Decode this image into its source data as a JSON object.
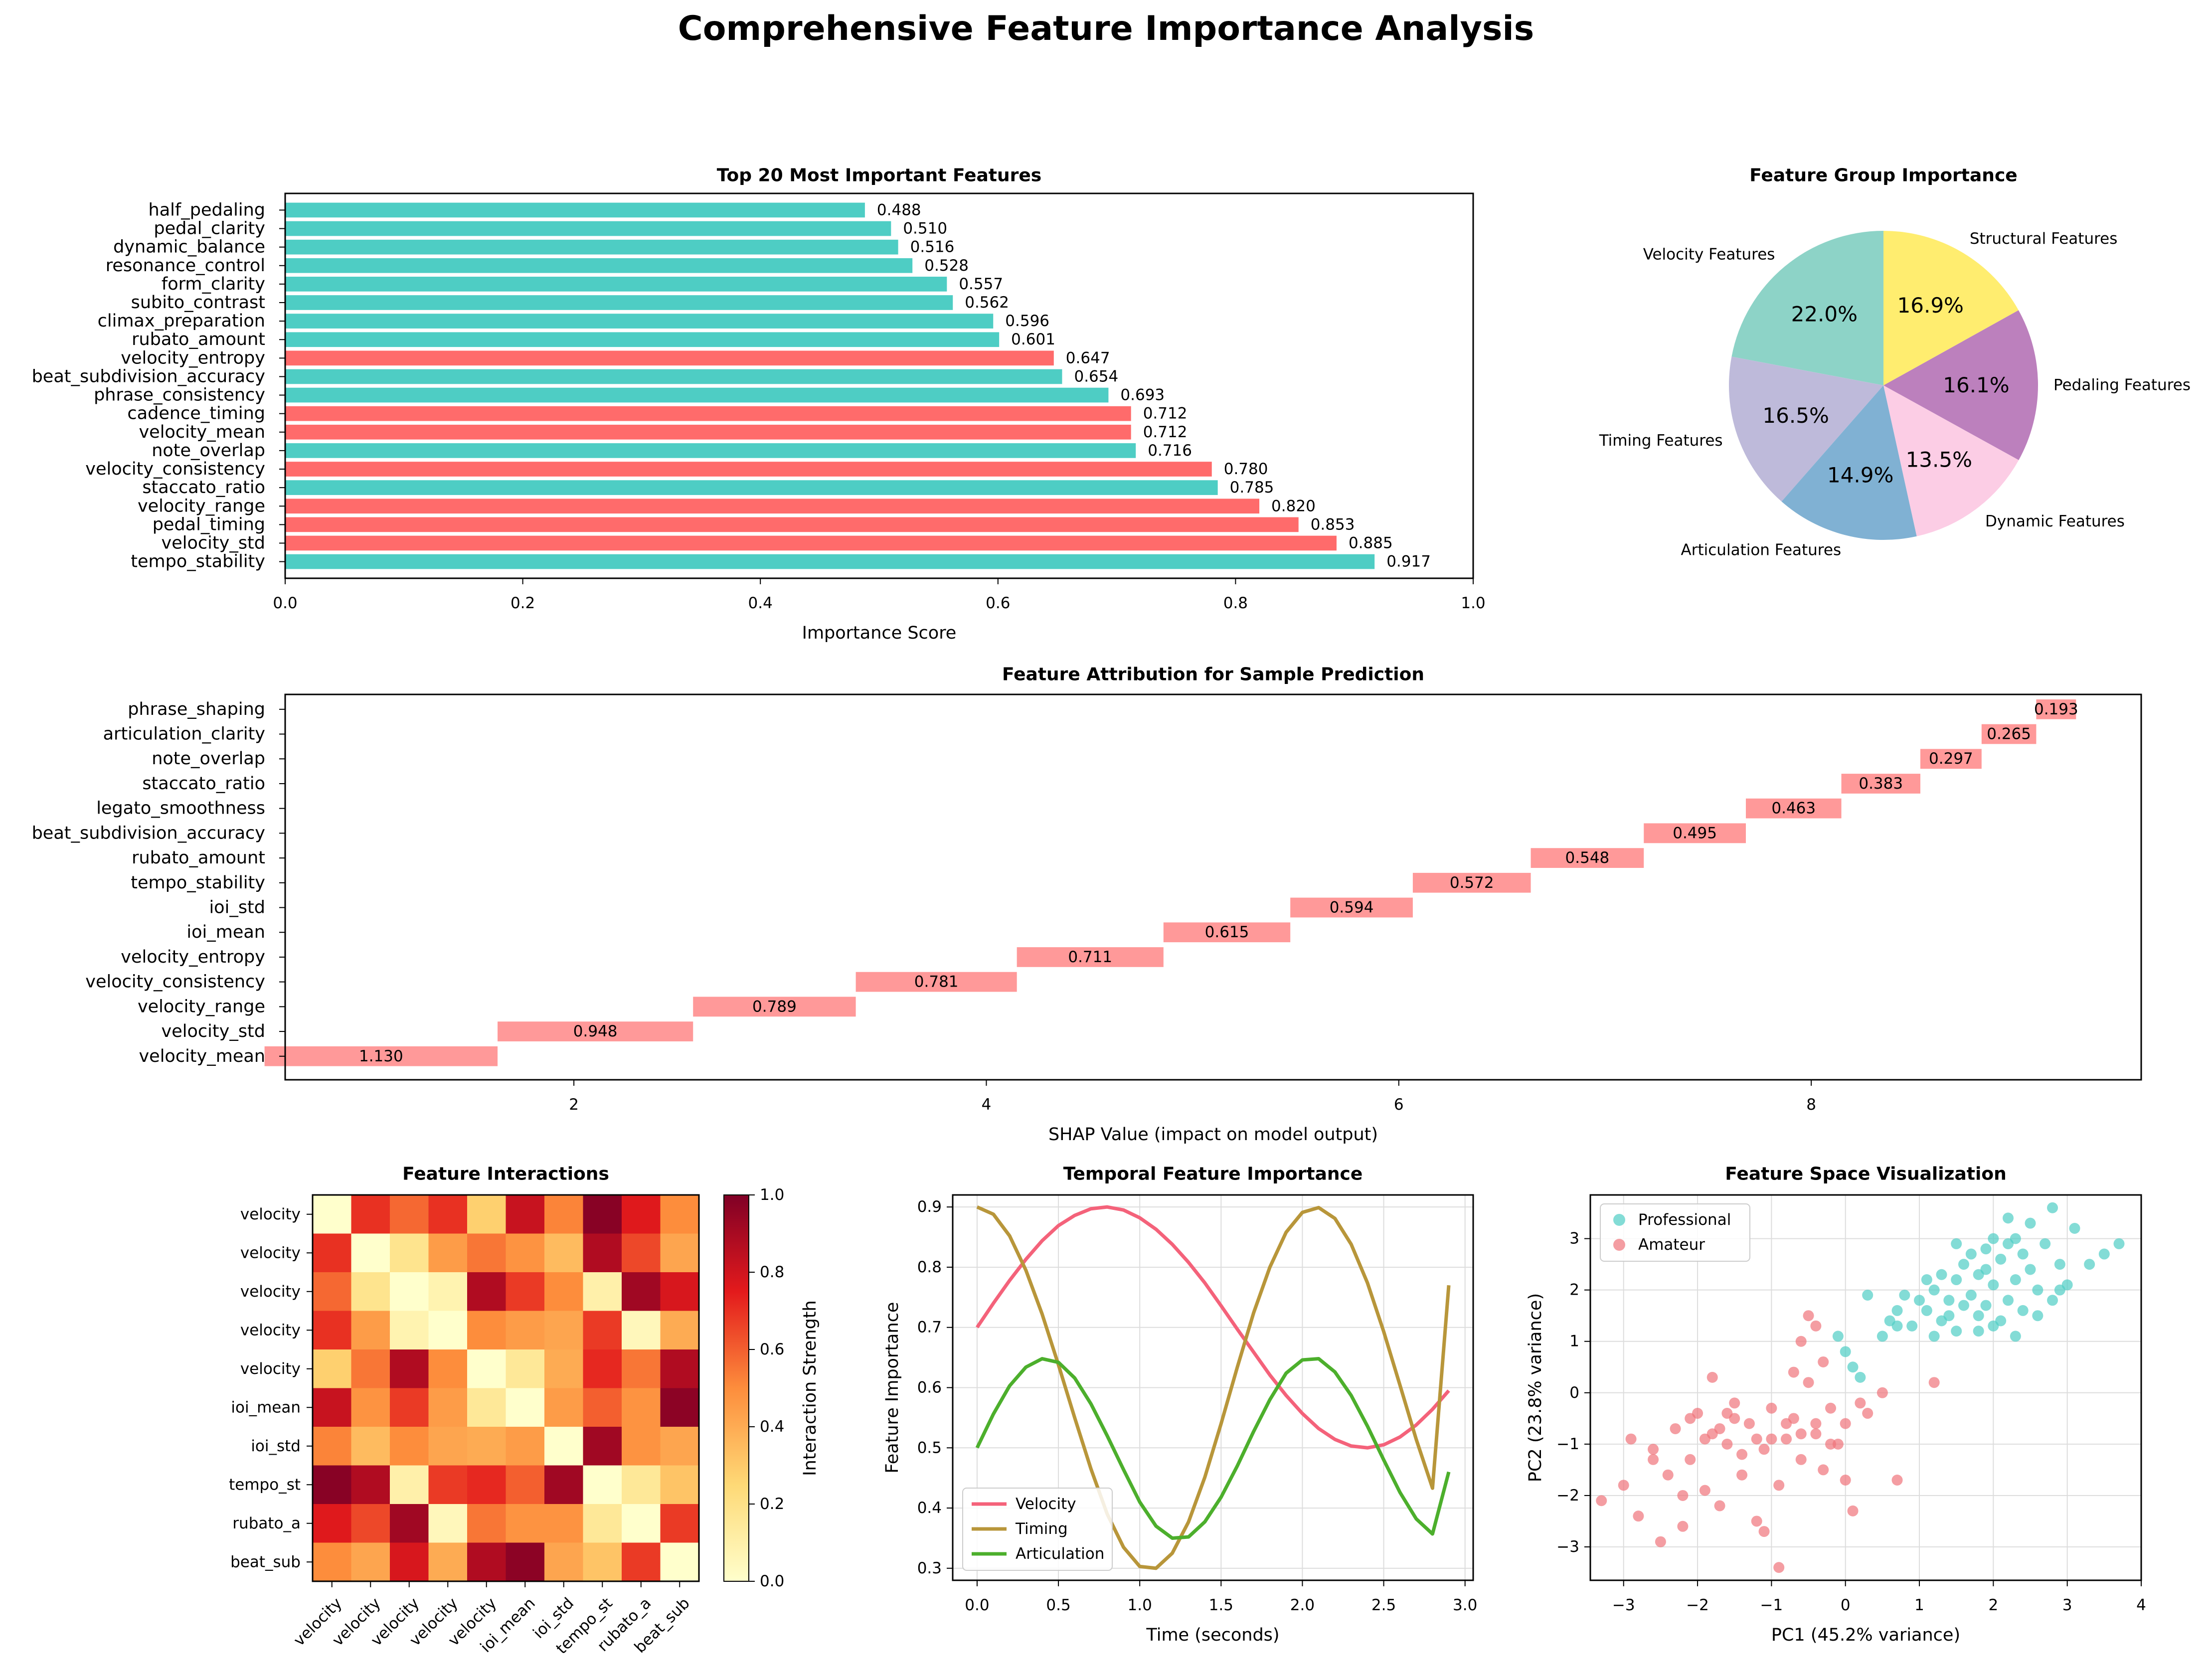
{
  "suptitle": "Comprehensive Feature Importance Analysis",
  "colors": {
    "high": "#ff6b6b",
    "low": "#4ecdc4",
    "shap": "#ff9999",
    "pie": [
      "#8dd3c7",
      "#bebada",
      "#80b1d3",
      "#fccde5",
      "#bc80bd",
      "#ffed6f"
    ],
    "line": [
      "#f4627a",
      "#b8963a",
      "#4caf2c"
    ],
    "professional": "#4ecdc4",
    "amateur": "#f0747a"
  },
  "chart_data": [
    {
      "id": "top20",
      "type": "bar",
      "orientation": "horizontal",
      "title": "Top 20 Most Important Features",
      "xlabel": "Importance Score",
      "xlim": [
        0,
        1.0
      ],
      "xticks": [
        "0.0",
        "0.2",
        "0.4",
        "0.6",
        "0.8",
        "1.0"
      ],
      "categories": [
        "tempo_stability",
        "velocity_std",
        "pedal_timing",
        "velocity_range",
        "staccato_ratio",
        "velocity_consistency",
        "note_overlap",
        "velocity_mean",
        "cadence_timing",
        "phrase_consistency",
        "beat_subdivision_accuracy",
        "velocity_entropy",
        "rubato_amount",
        "climax_preparation",
        "subito_contrast",
        "form_clarity",
        "resonance_control",
        "dynamic_balance",
        "pedal_clarity",
        "half_pedaling"
      ],
      "values": [
        0.917,
        0.885,
        0.853,
        0.82,
        0.785,
        0.78,
        0.716,
        0.712,
        0.712,
        0.693,
        0.654,
        0.647,
        0.601,
        0.596,
        0.562,
        0.557,
        0.528,
        0.516,
        0.51,
        0.488
      ],
      "labels": [
        "0.917",
        "0.885",
        "0.853",
        "0.820",
        "0.785",
        "0.780",
        "0.716",
        "0.712",
        "0.712",
        "0.693",
        "0.654",
        "0.647",
        "0.601",
        "0.596",
        "0.562",
        "0.557",
        "0.528",
        "0.516",
        "0.510",
        "0.488"
      ],
      "bar_color_group": [
        "low",
        "high",
        "high",
        "high",
        "low",
        "high",
        "low",
        "high",
        "high",
        "low",
        "low",
        "high",
        "low",
        "low",
        "low",
        "low",
        "low",
        "low",
        "low",
        "low"
      ]
    },
    {
      "id": "groups",
      "type": "pie",
      "title": "Feature Group Importance",
      "labels": [
        "Velocity Features",
        "Timing Features",
        "Articulation Features",
        "Dynamic Features",
        "Pedaling Features",
        "Structural Features"
      ],
      "values": [
        22.0,
        16.5,
        14.9,
        13.5,
        16.1,
        16.9
      ],
      "pct_labels": [
        "22.0%",
        "16.5%",
        "14.9%",
        "13.5%",
        "16.1%",
        "16.9%"
      ]
    },
    {
      "id": "shap",
      "type": "bar",
      "orientation": "horizontal-waterfall",
      "title": "Feature Attribution for Sample Prediction",
      "xlabel": "SHAP Value (impact on model output)",
      "xlim": [
        0.6,
        9.6
      ],
      "xticks": [
        2,
        4,
        6,
        8
      ],
      "xtick_labels": [
        "2",
        "4",
        "6",
        "8"
      ],
      "categories": [
        "velocity_mean",
        "velocity_std",
        "velocity_range",
        "velocity_consistency",
        "velocity_entropy",
        "ioi_mean",
        "ioi_std",
        "tempo_stability",
        "rubato_amount",
        "beat_subdivision_accuracy",
        "legato_smoothness",
        "staccato_ratio",
        "note_overlap",
        "articulation_clarity",
        "phrase_shaping"
      ],
      "values": [
        1.13,
        0.948,
        0.789,
        0.781,
        0.711,
        0.615,
        0.594,
        0.572,
        0.548,
        0.495,
        0.463,
        0.383,
        0.297,
        0.265,
        0.193
      ],
      "labels": [
        "1.130",
        "0.948",
        "0.789",
        "0.781",
        "0.711",
        "0.615",
        "0.594",
        "0.572",
        "0.548",
        "0.495",
        "0.463",
        "0.383",
        "0.297",
        "0.265",
        "0.193"
      ],
      "base": 0.5
    },
    {
      "id": "heatmap",
      "type": "heatmap",
      "title": "Feature Interactions",
      "row_labels": [
        "velocity",
        "velocity",
        "velocity",
        "velocity",
        "velocity",
        "ioi_mean",
        "ioi_std",
        "tempo_st",
        "rubato_a",
        "beat_sub"
      ],
      "col_labels": [
        "velocity",
        "velocity",
        "velocity",
        "velocity",
        "velocity",
        "ioi_mean",
        "ioi_std",
        "tempo_st",
        "rubato_a",
        "beat_sub"
      ],
      "colorbar_label": "Interaction Strength",
      "colorbar_ticks": [
        "0.0",
        "0.2",
        "0.4",
        "0.6",
        "0.8",
        "1.0"
      ],
      "range": [
        0,
        1
      ],
      "matrix": [
        [
          0.0,
          0.7,
          0.58,
          0.7,
          0.28,
          0.82,
          0.52,
          0.98,
          0.76,
          0.5
        ],
        [
          0.7,
          0.0,
          0.18,
          0.45,
          0.55,
          0.48,
          0.35,
          0.88,
          0.65,
          0.42
        ],
        [
          0.58,
          0.18,
          0.0,
          0.08,
          0.88,
          0.68,
          0.5,
          0.1,
          0.92,
          0.78
        ],
        [
          0.7,
          0.45,
          0.08,
          0.0,
          0.5,
          0.45,
          0.42,
          0.68,
          0.05,
          0.4
        ],
        [
          0.28,
          0.55,
          0.88,
          0.5,
          0.0,
          0.15,
          0.4,
          0.72,
          0.55,
          0.88
        ],
        [
          0.82,
          0.48,
          0.68,
          0.45,
          0.15,
          0.0,
          0.45,
          0.6,
          0.48,
          0.97
        ],
        [
          0.52,
          0.35,
          0.5,
          0.42,
          0.4,
          0.45,
          0.0,
          0.92,
          0.48,
          0.42
        ],
        [
          0.98,
          0.88,
          0.1,
          0.68,
          0.72,
          0.6,
          0.92,
          0.0,
          0.15,
          0.32
        ],
        [
          0.76,
          0.65,
          0.92,
          0.05,
          0.55,
          0.48,
          0.48,
          0.15,
          0.0,
          0.68
        ],
        [
          0.5,
          0.42,
          0.78,
          0.4,
          0.88,
          0.97,
          0.42,
          0.32,
          0.68,
          0.0
        ]
      ]
    },
    {
      "id": "temporal",
      "type": "line",
      "title": "Temporal Feature Importance",
      "xlabel": "Time (seconds)",
      "ylabel": "Feature Importance",
      "xlim": [
        -0.15,
        3.05
      ],
      "ylim": [
        0.28,
        0.92
      ],
      "xticks": [
        "0.0",
        "0.5",
        "1.0",
        "1.5",
        "2.0",
        "2.5",
        "3.0"
      ],
      "yticks": [
        "0.3",
        "0.4",
        "0.5",
        "0.6",
        "0.7",
        "0.8",
        "0.9"
      ],
      "x": [
        0.0,
        0.1,
        0.2,
        0.3,
        0.4,
        0.5,
        0.6,
        0.7,
        0.8,
        0.9,
        1.0,
        1.1,
        1.2,
        1.3,
        1.4,
        1.5,
        1.6,
        1.7,
        1.8,
        1.9,
        2.0,
        2.1,
        2.2,
        2.3,
        2.4,
        2.5,
        2.6,
        2.7,
        2.8,
        2.9
      ],
      "series": [
        {
          "name": "Velocity",
          "values": [
            0.7,
            0.74,
            0.778,
            0.813,
            0.844,
            0.869,
            0.886,
            0.897,
            0.9,
            0.895,
            0.882,
            0.863,
            0.838,
            0.808,
            0.774,
            0.736,
            0.697,
            0.659,
            0.621,
            0.587,
            0.557,
            0.532,
            0.514,
            0.503,
            0.5,
            0.505,
            0.518,
            0.538,
            0.564,
            0.595
          ]
        },
        {
          "name": "Timing",
          "values": [
            0.9,
            0.888,
            0.852,
            0.795,
            0.722,
            0.638,
            0.55,
            0.465,
            0.39,
            0.335,
            0.303,
            0.3,
            0.325,
            0.377,
            0.451,
            0.54,
            0.634,
            0.724,
            0.8,
            0.858,
            0.891,
            0.899,
            0.881,
            0.838,
            0.774,
            0.693,
            0.604,
            0.514,
            0.433,
            0.77
          ]
        },
        {
          "name": "Articulation",
          "values": [
            0.5,
            0.556,
            0.603,
            0.634,
            0.648,
            0.642,
            0.616,
            0.573,
            0.52,
            0.464,
            0.41,
            0.37,
            0.35,
            0.352,
            0.377,
            0.418,
            0.47,
            0.527,
            0.58,
            0.624,
            0.646,
            0.648,
            0.626,
            0.587,
            0.536,
            0.48,
            0.426,
            0.382,
            0.357,
            0.46
          ]
        }
      ]
    },
    {
      "id": "scatter",
      "type": "scatter",
      "title": "Feature Space Visualization",
      "xlabel": "PC1 (45.2% variance)",
      "ylabel": "PC2 (23.8% variance)",
      "xlim": [
        -3.45,
        4.0
      ],
      "ylim": [
        -3.65,
        3.85
      ],
      "xticks": [
        -3,
        -2,
        -1,
        0,
        1,
        2,
        3,
        4
      ],
      "xtick_labels": [
        "−3",
        "−2",
        "−1",
        "0",
        "1",
        "2",
        "3",
        "4"
      ],
      "yticks": [
        -3,
        -2,
        -1,
        0,
        1,
        2,
        3
      ],
      "ytick_labels": [
        "−3",
        "−2",
        "−1",
        "0",
        "1",
        "2",
        "3"
      ],
      "series": [
        {
          "name": "Professional",
          "points": [
            [
              1.1,
              1.6
            ],
            [
              1.2,
              2.0
            ],
            [
              1.3,
              1.4
            ],
            [
              1.4,
              1.8
            ],
            [
              1.5,
              2.2
            ],
            [
              1.5,
              1.2
            ],
            [
              1.6,
              2.5
            ],
            [
              1.7,
              1.9
            ],
            [
              1.8,
              1.5
            ],
            [
              1.9,
              2.8
            ],
            [
              2.0,
              2.1
            ],
            [
              2.0,
              1.3
            ],
            [
              2.1,
              2.6
            ],
            [
              2.2,
              1.8
            ],
            [
              2.3,
              3.0
            ],
            [
              2.3,
              2.2
            ],
            [
              2.4,
              1.6
            ],
            [
              2.5,
              2.4
            ],
            [
              2.6,
              2.0
            ],
            [
              2.7,
              2.9
            ],
            [
              2.8,
              1.8
            ],
            [
              2.9,
              2.5
            ],
            [
              3.0,
              2.1
            ],
            [
              3.1,
              3.2
            ],
            [
              3.3,
              2.5
            ],
            [
              3.5,
              2.7
            ],
            [
              3.7,
              2.9
            ],
            [
              0.6,
              1.4
            ],
            [
              0.7,
              1.6
            ],
            [
              0.8,
              1.9
            ],
            [
              0.9,
              1.3
            ],
            [
              1.0,
              1.8
            ],
            [
              1.2,
              1.1
            ],
            [
              1.3,
              2.3
            ],
            [
              1.4,
              1.5
            ],
            [
              1.6,
              1.7
            ],
            [
              1.7,
              2.7
            ],
            [
              1.8,
              2.3
            ],
            [
              1.9,
              1.7
            ],
            [
              2.1,
              1.4
            ],
            [
              2.2,
              2.9
            ],
            [
              2.4,
              2.7
            ],
            [
              2.6,
              1.5
            ],
            [
              2.8,
              3.6
            ],
            [
              2.0,
              3.0
            ],
            [
              1.5,
              2.9
            ],
            [
              0.3,
              1.9
            ],
            [
              0.0,
              0.8
            ],
            [
              -0.1,
              1.1
            ],
            [
              0.1,
              0.5
            ],
            [
              0.5,
              1.1
            ],
            [
              0.7,
              1.3
            ],
            [
              2.5,
              3.3
            ],
            [
              2.2,
              3.4
            ],
            [
              1.9,
              2.4
            ],
            [
              1.1,
              2.2
            ],
            [
              0.2,
              0.3
            ],
            [
              1.8,
              1.2
            ],
            [
              2.3,
              1.1
            ],
            [
              2.9,
              2.0
            ]
          ]
        },
        {
          "name": "Amateur",
          "points": [
            [
              -3.3,
              -2.1
            ],
            [
              -3.0,
              -1.8
            ],
            [
              -2.9,
              -0.9
            ],
            [
              -2.8,
              -2.4
            ],
            [
              -2.6,
              -1.1
            ],
            [
              -2.5,
              -2.9
            ],
            [
              -2.4,
              -1.6
            ],
            [
              -2.3,
              -0.7
            ],
            [
              -2.2,
              -2.6
            ],
            [
              -2.1,
              -1.3
            ],
            [
              -2.0,
              -0.4
            ],
            [
              -1.9,
              -1.9
            ],
            [
              -1.8,
              -0.8
            ],
            [
              -1.7,
              -2.2
            ],
            [
              -1.6,
              -1.0
            ],
            [
              -1.5,
              -0.2
            ],
            [
              -1.4,
              -1.6
            ],
            [
              -1.3,
              -0.6
            ],
            [
              -1.2,
              -2.5
            ],
            [
              -1.1,
              -1.1
            ],
            [
              -1.0,
              -0.3
            ],
            [
              -0.9,
              -1.8
            ],
            [
              -0.8,
              -0.9
            ],
            [
              -0.7,
              -0.5
            ],
            [
              -0.6,
              -1.3
            ],
            [
              -0.5,
              0.2
            ],
            [
              -0.4,
              -0.8
            ],
            [
              -0.3,
              -1.5
            ],
            [
              -0.2,
              -0.3
            ],
            [
              -0.1,
              -1.0
            ],
            [
              0.0,
              -0.6
            ],
            [
              0.1,
              -2.3
            ],
            [
              0.2,
              -0.2
            ],
            [
              0.3,
              -0.4
            ],
            [
              0.5,
              0.0
            ],
            [
              0.7,
              -1.7
            ],
            [
              -0.4,
              1.3
            ],
            [
              -0.6,
              1.0
            ],
            [
              -0.5,
              1.5
            ],
            [
              -0.3,
              0.6
            ],
            [
              -0.9,
              -3.4
            ],
            [
              -1.1,
              -2.7
            ],
            [
              -1.7,
              -0.7
            ],
            [
              -1.9,
              -0.9
            ],
            [
              -2.1,
              -0.5
            ],
            [
              -1.4,
              -1.2
            ],
            [
              -1.0,
              -0.9
            ],
            [
              -0.8,
              -0.6
            ],
            [
              -0.6,
              -0.8
            ],
            [
              -0.4,
              -0.6
            ],
            [
              -0.2,
              -1.0
            ],
            [
              0.0,
              -1.7
            ],
            [
              -1.5,
              -0.5
            ],
            [
              -1.2,
              -0.9
            ],
            [
              -2.6,
              -1.3
            ],
            [
              -2.2,
              -2.0
            ],
            [
              -1.8,
              0.3
            ],
            [
              -1.6,
              -0.4
            ],
            [
              1.2,
              0.2
            ],
            [
              -0.7,
              0.4
            ]
          ]
        }
      ]
    }
  ]
}
